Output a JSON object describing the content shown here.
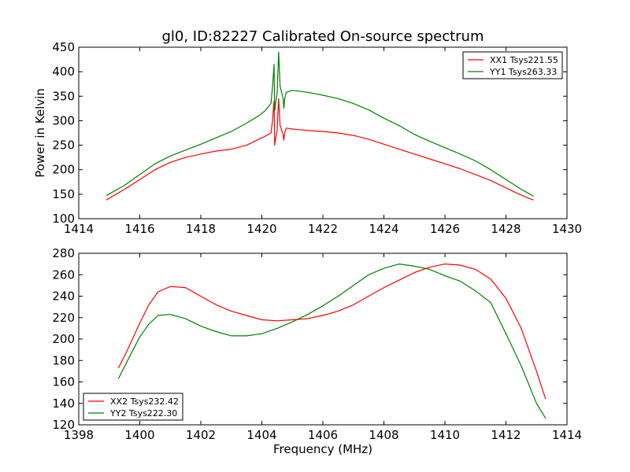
{
  "title": "gl0, ID:82227 Calibrated On-source spectrum",
  "chart_data": [
    {
      "type": "line",
      "title": "gl0, ID:82227 Calibrated On-source spectrum",
      "xlabel": "",
      "ylabel": "Power in Kelvin",
      "xlim": [
        1414,
        1430
      ],
      "ylim": [
        100,
        450
      ],
      "xticks": [
        1414,
        1416,
        1418,
        1420,
        1422,
        1424,
        1426,
        1428,
        1430
      ],
      "yticks": [
        100,
        150,
        200,
        250,
        300,
        350,
        400,
        450
      ],
      "legend_position": "top-right",
      "grid": false,
      "series": [
        {
          "name": "XX1 Tsys221.55",
          "color": "#ff0000",
          "points": [
            [
              1414.9,
              138
            ],
            [
              1415.5,
              160
            ],
            [
              1416,
              180
            ],
            [
              1416.5,
              200
            ],
            [
              1417,
              215
            ],
            [
              1417.5,
              225
            ],
            [
              1418,
              232
            ],
            [
              1418.5,
              238
            ],
            [
              1419,
              242
            ],
            [
              1419.5,
              250
            ],
            [
              1419.9,
              262
            ],
            [
              1420.1,
              268
            ],
            [
              1420.3,
              275
            ],
            [
              1420.35,
              300
            ],
            [
              1420.4,
              340
            ],
            [
              1420.42,
              250
            ],
            [
              1420.45,
              262
            ],
            [
              1420.5,
              280
            ],
            [
              1420.55,
              345
            ],
            [
              1420.6,
              290
            ],
            [
              1420.7,
              272
            ],
            [
              1420.72,
              260
            ],
            [
              1420.75,
              275
            ],
            [
              1420.8,
              285
            ],
            [
              1421,
              283
            ],
            [
              1421.5,
              280
            ],
            [
              1422,
              278
            ],
            [
              1422.5,
              275
            ],
            [
              1423,
              270
            ],
            [
              1423.5,
              262
            ],
            [
              1424,
              252
            ],
            [
              1424.5,
              242
            ],
            [
              1425,
              232
            ],
            [
              1425.5,
              222
            ],
            [
              1426,
              212
            ],
            [
              1426.5,
              202
            ],
            [
              1427,
              190
            ],
            [
              1427.5,
              178
            ],
            [
              1428,
              163
            ],
            [
              1428.5,
              148
            ],
            [
              1428.9,
              138
            ]
          ]
        },
        {
          "name": "YY1 Tsys263.33",
          "color": "#008000",
          "points": [
            [
              1414.9,
              147
            ],
            [
              1415.5,
              168
            ],
            [
              1416,
              190
            ],
            [
              1416.5,
              212
            ],
            [
              1417,
              228
            ],
            [
              1417.5,
              240
            ],
            [
              1418,
              252
            ],
            [
              1418.5,
              265
            ],
            [
              1419,
              278
            ],
            [
              1419.5,
              295
            ],
            [
              1419.9,
              310
            ],
            [
              1420.1,
              320
            ],
            [
              1420.3,
              335
            ],
            [
              1420.35,
              370
            ],
            [
              1420.4,
              415
            ],
            [
              1420.42,
              320
            ],
            [
              1420.45,
              335
            ],
            [
              1420.5,
              355
            ],
            [
              1420.55,
              440
            ],
            [
              1420.6,
              370
            ],
            [
              1420.7,
              345
            ],
            [
              1420.72,
              325
            ],
            [
              1420.75,
              345
            ],
            [
              1420.8,
              358
            ],
            [
              1421,
              362
            ],
            [
              1421.5,
              358
            ],
            [
              1422,
              352
            ],
            [
              1422.5,
              345
            ],
            [
              1423,
              335
            ],
            [
              1423.5,
              322
            ],
            [
              1424,
              305
            ],
            [
              1424.5,
              290
            ],
            [
              1425,
              272
            ],
            [
              1425.5,
              258
            ],
            [
              1426,
              245
            ],
            [
              1426.5,
              232
            ],
            [
              1427,
              218
            ],
            [
              1427.5,
              200
            ],
            [
              1428,
              180
            ],
            [
              1428.5,
              160
            ],
            [
              1428.9,
              146
            ]
          ]
        }
      ]
    },
    {
      "type": "line",
      "title": "",
      "xlabel": "Frequency (MHz)",
      "ylabel": "",
      "xlim": [
        1398,
        1414
      ],
      "ylim": [
        120,
        280
      ],
      "xticks": [
        1398,
        1400,
        1402,
        1404,
        1406,
        1408,
        1410,
        1412,
        1414
      ],
      "yticks": [
        120,
        140,
        160,
        180,
        200,
        220,
        240,
        260,
        280
      ],
      "legend_position": "bottom-left",
      "grid": false,
      "series": [
        {
          "name": "XX2 Tsys232.42",
          "color": "#ff0000",
          "points": [
            [
              1399.3,
              173
            ],
            [
              1399.6,
              190
            ],
            [
              1400,
              215
            ],
            [
              1400.3,
              232
            ],
            [
              1400.6,
              244
            ],
            [
              1401,
              249
            ],
            [
              1401.5,
              248
            ],
            [
              1402,
              240
            ],
            [
              1402.5,
              232
            ],
            [
              1403,
              226
            ],
            [
              1403.5,
              222
            ],
            [
              1404,
              218
            ],
            [
              1404.5,
              217
            ],
            [
              1405,
              218
            ],
            [
              1405.5,
              219
            ],
            [
              1406,
              222
            ],
            [
              1406.5,
              226
            ],
            [
              1407,
              232
            ],
            [
              1407.5,
              240
            ],
            [
              1408,
              248
            ],
            [
              1408.5,
              255
            ],
            [
              1409,
              262
            ],
            [
              1409.5,
              267
            ],
            [
              1410,
              270
            ],
            [
              1410.5,
              269
            ],
            [
              1411,
              265
            ],
            [
              1411.5,
              256
            ],
            [
              1412,
              238
            ],
            [
              1412.5,
              210
            ],
            [
              1413,
              170
            ],
            [
              1413.3,
              144
            ]
          ]
        },
        {
          "name": "YY2 Tsys222.30",
          "color": "#008000",
          "points": [
            [
              1399.3,
              163
            ],
            [
              1399.6,
              180
            ],
            [
              1400,
              202
            ],
            [
              1400.3,
              214
            ],
            [
              1400.6,
              222
            ],
            [
              1401,
              223
            ],
            [
              1401.5,
              219
            ],
            [
              1402,
              212
            ],
            [
              1402.5,
              207
            ],
            [
              1403,
              203
            ],
            [
              1403.5,
              203
            ],
            [
              1404,
              205
            ],
            [
              1404.5,
              210
            ],
            [
              1405,
              216
            ],
            [
              1405.5,
              223
            ],
            [
              1406,
              231
            ],
            [
              1406.5,
              240
            ],
            [
              1407,
              250
            ],
            [
              1407.5,
              260
            ],
            [
              1408,
              266
            ],
            [
              1408.5,
              270
            ],
            [
              1409,
              268
            ],
            [
              1409.5,
              265
            ],
            [
              1410,
              259
            ],
            [
              1410.5,
              254
            ],
            [
              1411,
              245
            ],
            [
              1411.5,
              234
            ],
            [
              1412,
              205
            ],
            [
              1412.5,
              175
            ],
            [
              1413,
              140
            ],
            [
              1413.3,
              126
            ]
          ]
        }
      ]
    }
  ]
}
